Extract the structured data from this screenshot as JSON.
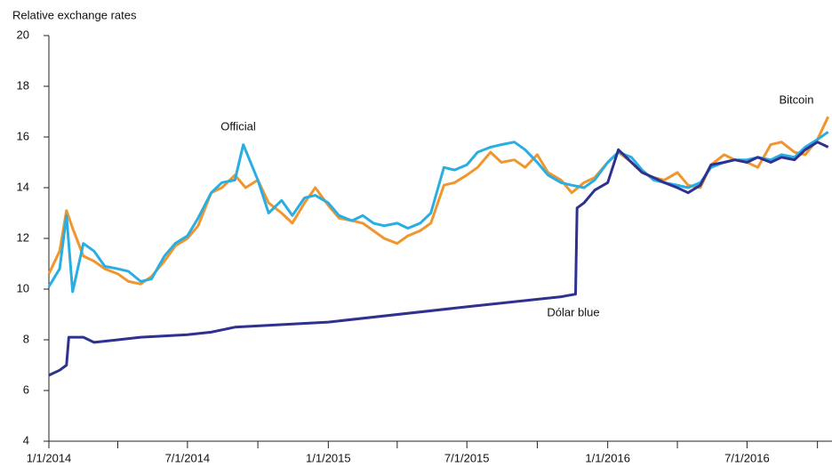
{
  "chart_data": {
    "type": "line",
    "ylabel": "Relative exchange rates",
    "ylim": [
      4,
      20
    ],
    "yticks": [
      4,
      6,
      8,
      10,
      12,
      14,
      16,
      18,
      20
    ],
    "xlim": [
      "2014-01-01",
      "2016-10-20"
    ],
    "xticks": [
      {
        "value": "2014-01-01",
        "label": "1/1/2014"
      },
      {
        "value": "2014-07-01",
        "label": "7/1/2014"
      },
      {
        "value": "2015-01-01",
        "label": "1/1/2015"
      },
      {
        "value": "2015-07-01",
        "label": "7/1/2015"
      },
      {
        "value": "2016-01-01",
        "label": "1/1/2016"
      },
      {
        "value": "2016-07-01",
        "label": "7/1/2016"
      }
    ],
    "xminorticks": [
      "2014-04-01",
      "2014-10-01",
      "2015-04-01",
      "2015-10-01",
      "2016-04-01",
      "2016-10-01"
    ],
    "grid": false,
    "annotations": [
      {
        "text": "Official",
        "series": 1
      },
      {
        "text": "Dólar blue",
        "series": 2
      },
      {
        "text": "Bitcoin",
        "series": 0
      }
    ],
    "series": [
      {
        "name": "Bitcoin",
        "color": "#f0962e",
        "x": [
          "2014-01-01",
          "2014-01-15",
          "2014-01-24",
          "2014-02-01",
          "2014-02-15",
          "2014-03-01",
          "2014-03-15",
          "2014-04-01",
          "2014-04-15",
          "2014-05-01",
          "2014-05-15",
          "2014-06-01",
          "2014-06-15",
          "2014-07-01",
          "2014-07-15",
          "2014-08-01",
          "2014-08-15",
          "2014-09-01",
          "2014-09-15",
          "2014-10-01",
          "2014-10-15",
          "2014-11-01",
          "2014-11-15",
          "2014-12-01",
          "2014-12-15",
          "2015-01-01",
          "2015-01-15",
          "2015-02-01",
          "2015-02-15",
          "2015-03-01",
          "2015-03-15",
          "2015-04-01",
          "2015-04-15",
          "2015-05-01",
          "2015-05-15",
          "2015-06-01",
          "2015-06-15",
          "2015-07-01",
          "2015-07-15",
          "2015-08-01",
          "2015-08-15",
          "2015-09-01",
          "2015-09-15",
          "2015-10-01",
          "2015-10-15",
          "2015-11-01",
          "2015-11-15",
          "2015-12-01",
          "2015-12-15",
          "2016-01-01",
          "2016-01-15",
          "2016-02-01",
          "2016-02-15",
          "2016-03-01",
          "2016-03-15",
          "2016-04-01",
          "2016-04-15",
          "2016-05-01",
          "2016-05-15",
          "2016-06-01",
          "2016-06-15",
          "2016-07-01",
          "2016-07-15",
          "2016-08-01",
          "2016-08-15",
          "2016-09-01",
          "2016-09-15",
          "2016-10-01",
          "2016-10-15"
        ],
        "values": [
          10.6,
          11.5,
          13.1,
          12.4,
          11.3,
          11.1,
          10.8,
          10.6,
          10.3,
          10.2,
          10.5,
          11.1,
          11.7,
          12.0,
          12.5,
          13.8,
          14.0,
          14.5,
          14.0,
          14.3,
          13.4,
          13.0,
          12.6,
          13.4,
          14.0,
          13.3,
          12.8,
          12.7,
          12.6,
          12.3,
          12.0,
          11.8,
          12.1,
          12.3,
          12.6,
          14.1,
          14.2,
          14.5,
          14.8,
          15.4,
          15.0,
          15.1,
          14.8,
          15.3,
          14.6,
          14.3,
          13.8,
          14.2,
          14.4,
          15.0,
          15.4,
          15.0,
          14.6,
          14.4,
          14.3,
          14.6,
          14.1,
          14.0,
          14.9,
          15.3,
          15.1,
          15.0,
          14.8,
          15.7,
          15.8,
          15.4,
          15.3,
          15.9,
          16.8
        ]
      },
      {
        "name": "Official",
        "color": "#29aee2",
        "x": [
          "2014-01-01",
          "2014-01-15",
          "2014-01-24",
          "2014-02-01",
          "2014-02-15",
          "2014-03-01",
          "2014-03-15",
          "2014-04-01",
          "2014-04-15",
          "2014-05-01",
          "2014-05-15",
          "2014-06-01",
          "2014-06-15",
          "2014-07-01",
          "2014-07-15",
          "2014-08-01",
          "2014-08-15",
          "2014-09-01",
          "2014-09-12",
          "2014-10-01",
          "2014-10-15",
          "2014-11-01",
          "2014-11-15",
          "2014-12-01",
          "2014-12-15",
          "2015-01-01",
          "2015-01-15",
          "2015-02-01",
          "2015-02-15",
          "2015-03-01",
          "2015-03-15",
          "2015-04-01",
          "2015-04-15",
          "2015-05-01",
          "2015-05-15",
          "2015-06-01",
          "2015-06-15",
          "2015-07-01",
          "2015-07-15",
          "2015-08-01",
          "2015-08-15",
          "2015-09-01",
          "2015-09-15",
          "2015-10-01",
          "2015-10-15",
          "2015-11-01",
          "2015-11-15",
          "2015-12-01",
          "2015-12-15",
          "2016-01-01",
          "2016-01-15",
          "2016-02-01",
          "2016-02-15",
          "2016-03-01",
          "2016-03-15",
          "2016-04-01",
          "2016-04-15",
          "2016-05-01",
          "2016-05-15",
          "2016-06-01",
          "2016-06-15",
          "2016-07-01",
          "2016-07-15",
          "2016-08-01",
          "2016-08-15",
          "2016-09-01",
          "2016-09-15",
          "2016-10-01",
          "2016-10-15"
        ],
        "values": [
          10.1,
          10.8,
          12.9,
          9.9,
          11.8,
          11.5,
          10.9,
          10.8,
          10.7,
          10.3,
          10.4,
          11.3,
          11.8,
          12.1,
          12.8,
          13.8,
          14.2,
          14.3,
          15.7,
          14.3,
          13.0,
          13.5,
          12.9,
          13.6,
          13.7,
          13.4,
          12.9,
          12.7,
          12.9,
          12.6,
          12.5,
          12.6,
          12.4,
          12.6,
          13.0,
          14.8,
          14.7,
          14.9,
          15.4,
          15.6,
          15.7,
          15.8,
          15.5,
          15.0,
          14.5,
          14.2,
          14.1,
          14.0,
          14.3,
          15.0,
          15.4,
          15.2,
          14.7,
          14.3,
          14.2,
          14.1,
          14.0,
          14.2,
          14.8,
          15.0,
          15.1,
          15.1,
          15.2,
          15.1,
          15.3,
          15.2,
          15.6,
          15.9,
          16.2
        ]
      },
      {
        "name": "Dólar blue",
        "color": "#2e3190",
        "x": [
          "2014-01-01",
          "2014-01-15",
          "2014-01-24",
          "2014-01-27",
          "2014-02-15",
          "2014-03-01",
          "2014-04-01",
          "2014-05-01",
          "2014-07-01",
          "2014-08-01",
          "2014-09-01",
          "2015-01-01",
          "2015-07-01",
          "2015-11-01",
          "2015-11-20",
          "2015-11-22",
          "2015-12-01",
          "2015-12-15",
          "2016-01-01",
          "2016-01-15",
          "2016-02-01",
          "2016-02-15",
          "2016-03-01",
          "2016-03-15",
          "2016-04-01",
          "2016-04-15",
          "2016-05-01",
          "2016-05-15",
          "2016-06-01",
          "2016-06-15",
          "2016-07-01",
          "2016-07-15",
          "2016-08-01",
          "2016-08-15",
          "2016-09-01",
          "2016-09-15",
          "2016-10-01",
          "2016-10-15"
        ],
        "values": [
          6.6,
          6.8,
          7.0,
          8.1,
          8.1,
          7.9,
          8.0,
          8.1,
          8.2,
          8.3,
          8.5,
          8.7,
          9.3,
          9.7,
          9.8,
          13.2,
          13.4,
          13.9,
          14.2,
          15.5,
          15.0,
          14.6,
          14.4,
          14.2,
          14.0,
          13.8,
          14.1,
          14.9,
          15.0,
          15.1,
          15.0,
          15.2,
          15.0,
          15.2,
          15.1,
          15.5,
          15.8,
          15.6
        ]
      }
    ]
  }
}
